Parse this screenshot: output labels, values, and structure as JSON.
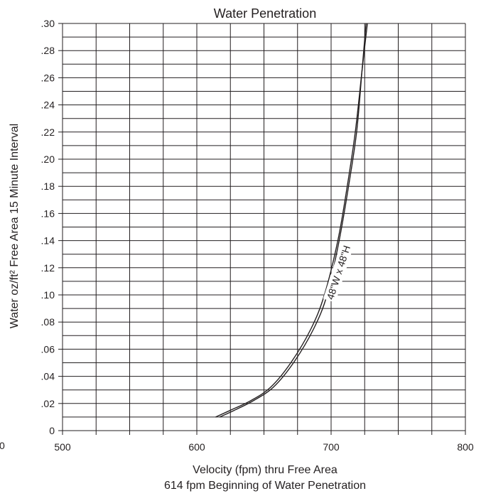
{
  "chart_data": {
    "type": "line",
    "title": "Water Penetration",
    "xlabel": "Velocity (fpm) thru Free Area",
    "ylabel": "Water oz/ft² Free Area 15 Minute Interval",
    "note": "614 fpm Beginning of Water Penetration",
    "edge_fragment": "0",
    "xlim": [
      500,
      800
    ],
    "ylim": [
      0,
      0.3
    ],
    "x_ticks": [
      {
        "value": 500,
        "label": "500"
      },
      {
        "value": 600,
        "label": "600"
      },
      {
        "value": 700,
        "label": "700"
      },
      {
        "value": 800,
        "label": "800"
      }
    ],
    "x_minor_step": 25,
    "y_ticks": [
      {
        "value": 0,
        "label": "0"
      },
      {
        "value": 0.02,
        "label": ".02"
      },
      {
        "value": 0.04,
        "label": ".04"
      },
      {
        "value": 0.06,
        "label": ".06"
      },
      {
        "value": 0.08,
        "label": ".08"
      },
      {
        "value": 0.1,
        "label": ".10"
      },
      {
        "value": 0.12,
        "label": ".12"
      },
      {
        "value": 0.14,
        "label": ".14"
      },
      {
        "value": 0.16,
        "label": ".16"
      },
      {
        "value": 0.18,
        "label": ".18"
      },
      {
        "value": 0.2,
        "label": ".20"
      },
      {
        "value": 0.22,
        "label": ".22"
      },
      {
        "value": 0.24,
        "label": ".24"
      },
      {
        "value": 0.26,
        "label": ".26"
      },
      {
        "value": 0.28,
        "label": ".28"
      },
      {
        "value": 0.3,
        "label": ".30"
      }
    ],
    "y_minor_step": 0.01,
    "grid": true,
    "series": [
      {
        "name": "48\"W x 48\"H",
        "x": [
          614,
          625,
          640,
          655,
          670,
          685,
          695,
          705,
          712,
          718,
          723,
          727
        ],
        "y": [
          0.01,
          0.015,
          0.022,
          0.032,
          0.05,
          0.075,
          0.1,
          0.14,
          0.18,
          0.22,
          0.265,
          0.3
        ]
      },
      {
        "name": "",
        "x": [
          617,
          628,
          642,
          657,
          672,
          687,
          697,
          706,
          713,
          719,
          723,
          726
        ],
        "y": [
          0.01,
          0.015,
          0.022,
          0.032,
          0.05,
          0.075,
          0.1,
          0.14,
          0.18,
          0.22,
          0.265,
          0.3
        ]
      }
    ],
    "colors": {
      "ink": "#231f20",
      "background": "#ffffff"
    }
  }
}
